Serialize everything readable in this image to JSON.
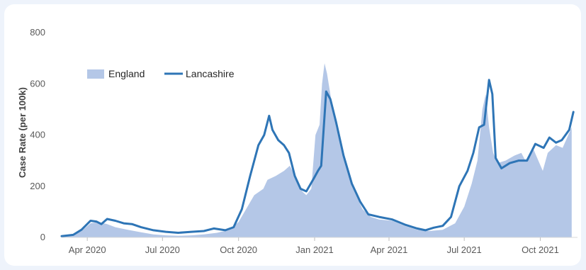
{
  "chart_data": {
    "type": "area",
    "title": "",
    "xlabel": "",
    "ylabel": "Case Rate (per 100k)",
    "ylim": [
      0,
      800
    ],
    "yticks": [
      0,
      200,
      400,
      600,
      800
    ],
    "xlim": [
      "2020-03-01",
      "2021-11-15"
    ],
    "xticks": [
      {
        "date": "2020-04-01",
        "label": "Apr 2020"
      },
      {
        "date": "2020-07-01",
        "label": "Jul 2020"
      },
      {
        "date": "2020-10-01",
        "label": "Oct 2020"
      },
      {
        "date": "2021-01-01",
        "label": "Jan 2021"
      },
      {
        "date": "2021-04-01",
        "label": "Apr 2021"
      },
      {
        "date": "2021-07-01",
        "label": "Jul 2021"
      },
      {
        "date": "2021-10-01",
        "label": "Oct 2021"
      }
    ],
    "grid": false,
    "legend": "top-left",
    "series": [
      {
        "name": "England",
        "kind": "area",
        "color": "#b4c7e7",
        "points": [
          [
            "2020-03-01",
            2
          ],
          [
            "2020-03-15",
            8
          ],
          [
            "2020-03-25",
            25
          ],
          [
            "2020-04-05",
            55
          ],
          [
            "2020-04-15",
            60
          ],
          [
            "2020-04-25",
            52
          ],
          [
            "2020-05-05",
            40
          ],
          [
            "2020-05-20",
            30
          ],
          [
            "2020-06-05",
            20
          ],
          [
            "2020-06-20",
            12
          ],
          [
            "2020-07-05",
            8
          ],
          [
            "2020-07-20",
            6
          ],
          [
            "2020-08-05",
            8
          ],
          [
            "2020-08-20",
            12
          ],
          [
            "2020-09-05",
            18
          ],
          [
            "2020-09-20",
            30
          ],
          [
            "2020-10-01",
            60
          ],
          [
            "2020-10-10",
            110
          ],
          [
            "2020-10-20",
            165
          ],
          [
            "2020-10-31",
            190
          ],
          [
            "2020-11-05",
            225
          ],
          [
            "2020-11-15",
            240
          ],
          [
            "2020-11-25",
            260
          ],
          [
            "2020-12-02",
            280
          ],
          [
            "2020-12-10",
            230
          ],
          [
            "2020-12-17",
            180
          ],
          [
            "2020-12-22",
            165
          ],
          [
            "2020-12-28",
            190
          ],
          [
            "2021-01-02",
            400
          ],
          [
            "2021-01-07",
            440
          ],
          [
            "2021-01-10",
            600
          ],
          [
            "2021-01-13",
            680
          ],
          [
            "2021-01-16",
            640
          ],
          [
            "2021-01-20",
            560
          ],
          [
            "2021-01-27",
            430
          ],
          [
            "2021-02-05",
            320
          ],
          [
            "2021-02-15",
            200
          ],
          [
            "2021-02-28",
            110
          ],
          [
            "2021-03-10",
            80
          ],
          [
            "2021-03-20",
            70
          ],
          [
            "2021-04-05",
            65
          ],
          [
            "2021-04-20",
            45
          ],
          [
            "2021-05-05",
            30
          ],
          [
            "2021-05-20",
            25
          ],
          [
            "2021-06-05",
            30
          ],
          [
            "2021-06-20",
            55
          ],
          [
            "2021-07-01",
            120
          ],
          [
            "2021-07-10",
            210
          ],
          [
            "2021-07-17",
            300
          ],
          [
            "2021-07-23",
            500
          ],
          [
            "2021-07-27",
            560
          ],
          [
            "2021-07-31",
            430
          ],
          [
            "2021-08-05",
            330
          ],
          [
            "2021-08-10",
            290
          ],
          [
            "2021-08-20",
            300
          ],
          [
            "2021-08-31",
            320
          ],
          [
            "2021-09-08",
            330
          ],
          [
            "2021-09-13",
            300
          ],
          [
            "2021-09-22",
            350
          ],
          [
            "2021-09-30",
            290
          ],
          [
            "2021-10-04",
            260
          ],
          [
            "2021-10-10",
            330
          ],
          [
            "2021-10-20",
            360
          ],
          [
            "2021-10-28",
            350
          ],
          [
            "2021-11-08",
            430
          ]
        ]
      },
      {
        "name": "Lancashire",
        "kind": "line",
        "color": "#2e75b6",
        "points": [
          [
            "2020-03-01",
            5
          ],
          [
            "2020-03-15",
            10
          ],
          [
            "2020-03-25",
            30
          ],
          [
            "2020-04-05",
            65
          ],
          [
            "2020-04-12",
            62
          ],
          [
            "2020-04-18",
            52
          ],
          [
            "2020-04-25",
            72
          ],
          [
            "2020-05-05",
            65
          ],
          [
            "2020-05-15",
            55
          ],
          [
            "2020-05-25",
            52
          ],
          [
            "2020-06-05",
            40
          ],
          [
            "2020-06-20",
            28
          ],
          [
            "2020-07-05",
            22
          ],
          [
            "2020-07-20",
            18
          ],
          [
            "2020-08-05",
            22
          ],
          [
            "2020-08-20",
            25
          ],
          [
            "2020-09-01",
            35
          ],
          [
            "2020-09-15",
            28
          ],
          [
            "2020-09-25",
            40
          ],
          [
            "2020-10-05",
            110
          ],
          [
            "2020-10-15",
            240
          ],
          [
            "2020-10-25",
            360
          ],
          [
            "2020-11-01",
            400
          ],
          [
            "2020-11-07",
            475
          ],
          [
            "2020-11-11",
            420
          ],
          [
            "2020-11-18",
            380
          ],
          [
            "2020-11-25",
            360
          ],
          [
            "2020-12-01",
            330
          ],
          [
            "2020-12-08",
            240
          ],
          [
            "2020-12-15",
            190
          ],
          [
            "2020-12-22",
            180
          ],
          [
            "2020-12-31",
            230
          ],
          [
            "2021-01-05",
            260
          ],
          [
            "2021-01-09",
            280
          ],
          [
            "2021-01-15",
            570
          ],
          [
            "2021-01-20",
            540
          ],
          [
            "2021-01-27",
            450
          ],
          [
            "2021-02-05",
            320
          ],
          [
            "2021-02-15",
            210
          ],
          [
            "2021-02-25",
            140
          ],
          [
            "2021-03-07",
            90
          ],
          [
            "2021-03-20",
            80
          ],
          [
            "2021-04-05",
            70
          ],
          [
            "2021-04-20",
            50
          ],
          [
            "2021-05-05",
            35
          ],
          [
            "2021-05-15",
            28
          ],
          [
            "2021-05-25",
            38
          ],
          [
            "2021-06-05",
            45
          ],
          [
            "2021-06-15",
            80
          ],
          [
            "2021-06-25",
            200
          ],
          [
            "2021-07-05",
            260
          ],
          [
            "2021-07-12",
            330
          ],
          [
            "2021-07-19",
            430
          ],
          [
            "2021-07-25",
            440
          ],
          [
            "2021-07-31",
            615
          ],
          [
            "2021-08-04",
            560
          ],
          [
            "2021-08-08",
            310
          ],
          [
            "2021-08-15",
            270
          ],
          [
            "2021-08-25",
            290
          ],
          [
            "2021-09-05",
            300
          ],
          [
            "2021-09-15",
            300
          ],
          [
            "2021-09-25",
            365
          ],
          [
            "2021-10-05",
            350
          ],
          [
            "2021-10-12",
            390
          ],
          [
            "2021-10-20",
            370
          ],
          [
            "2021-10-27",
            380
          ],
          [
            "2021-11-05",
            420
          ],
          [
            "2021-11-10",
            490
          ]
        ]
      }
    ]
  }
}
